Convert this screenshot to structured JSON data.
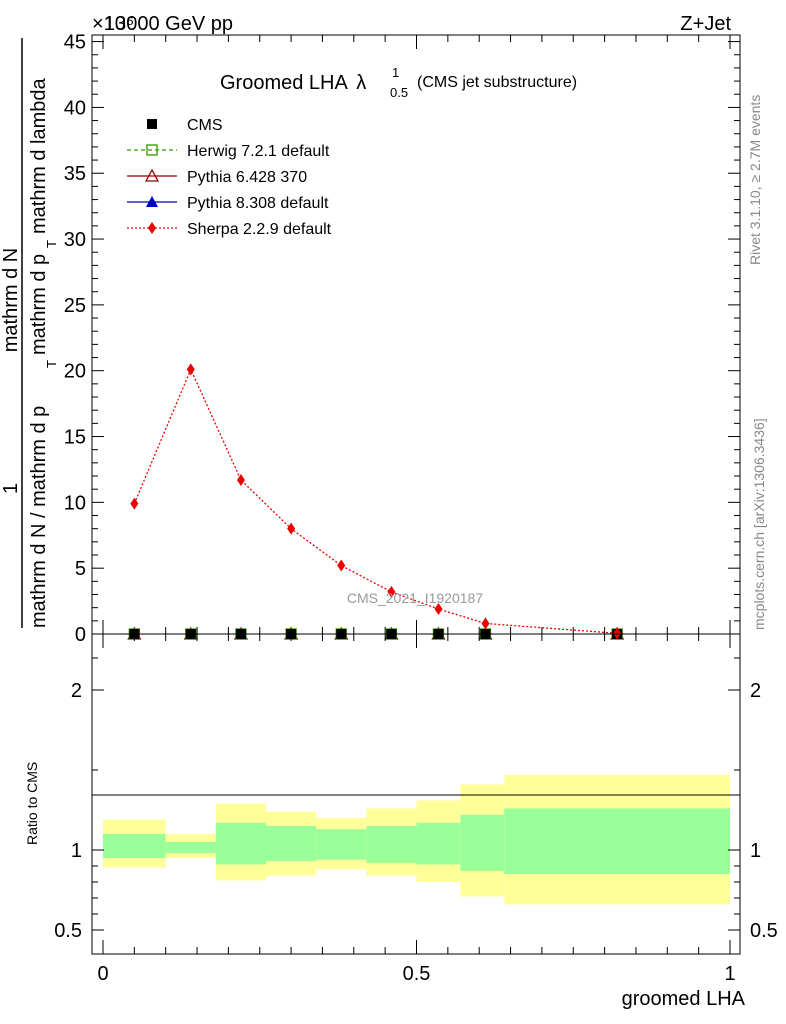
{
  "header": {
    "energy_label": "13000 GeV pp",
    "exponent_label": "×10⁶",
    "process_label": "Z+Jet"
  },
  "side_labels": {
    "rivet": "Rivet 3.1.10, ≥ 2.7M events",
    "mcplots": "mcplots.cern.ch [arXiv:1306.3436]"
  },
  "watermark": "CMS_2021_I1920187",
  "chart_data": [
    {
      "type": "line",
      "title_main": "Groomed LHA",
      "title_lambda": "λ",
      "title_sup": "1",
      "title_sub": "0.5",
      "title_note": "(CMS jet substructure)",
      "ylabel_numerator": "1",
      "ylabel_numerator_full": "mathrm d N",
      "ylabel_denominator": "mathrm d N / mathrm d p",
      "ylabel_denominator_mid": "mathrm d p",
      "ylabel_denominator_end": "mathrm d lambda",
      "ylabel_sub_t": "T",
      "ylabel_mid_text": "mathrm d p",
      "ylabel_sub_t2": "T",
      "ylabel_tail": "mathrm d lambda",
      "xlim": [
        0,
        1
      ],
      "ylim": [
        0,
        45.5
      ],
      "yticks": [
        0,
        5,
        10,
        15,
        20,
        25,
        30,
        35,
        40,
        45
      ],
      "ytick_labels": [
        "0",
        "5",
        "10",
        "15",
        "20",
        "25",
        "30",
        "35",
        "40",
        "45"
      ],
      "legend_position": "top-left",
      "legend": [
        {
          "name": "CMS",
          "color": "#000000",
          "marker": "filled-square",
          "line": "none"
        },
        {
          "name": "Herwig 7.2.1 default",
          "color": "#339900",
          "marker": "open-square",
          "line": "dashed"
        },
        {
          "name": "Pythia 6.428 370",
          "color": "#990000",
          "marker": "open-triangle",
          "line": "solid"
        },
        {
          "name": "Pythia 8.308 default",
          "color": "#0000cc",
          "marker": "filled-triangle",
          "line": "solid"
        },
        {
          "name": "Sherpa 2.2.9 default",
          "color": "#ee0000",
          "marker": "filled-diamond",
          "line": "dotted"
        }
      ],
      "bin_centers": [
        0.05,
        0.14,
        0.22,
        0.3,
        0.38,
        0.46,
        0.535,
        0.61,
        0.82
      ],
      "series": [
        {
          "name": "Sherpa 2.2.9 default",
          "values": [
            9.9,
            20.1,
            11.7,
            8.0,
            5.2,
            3.2,
            1.9,
            0.8,
            0.05
          ]
        },
        {
          "name": "CMS",
          "values": [
            0,
            0,
            0,
            0,
            0,
            0,
            0,
            0,
            0
          ]
        },
        {
          "name": "Herwig 7.2.1 default",
          "values": [
            0,
            0,
            0,
            0,
            0,
            0,
            0,
            0,
            0
          ]
        },
        {
          "name": "Pythia 6.428 370",
          "values": [
            0,
            0,
            0,
            0,
            0,
            0,
            0,
            0,
            0
          ]
        },
        {
          "name": "Pythia 8.308 default",
          "values": [
            0,
            0,
            0,
            0,
            0,
            0,
            0,
            0,
            0
          ]
        }
      ]
    },
    {
      "type": "area",
      "ylabel": "Ratio to CMS",
      "xlabel": "groomed LHA",
      "xlim": [
        0,
        1
      ],
      "ylim": [
        0.35,
        2.35
      ],
      "xticks": [
        0,
        0.5,
        1
      ],
      "xtick_labels": [
        "0",
        "0.5",
        "1"
      ],
      "yticks": [
        0.5,
        1,
        2
      ],
      "ytick_labels": [
        "0.5",
        "1",
        "2"
      ],
      "band_colors": {
        "inner": "#99ff99",
        "outer": "#ffff99"
      },
      "bins": [
        {
          "x0": 0.0,
          "x1": 0.1,
          "inner_lo": 0.95,
          "inner_hi": 1.1,
          "outer_lo": 0.89,
          "outer_hi": 1.19
        },
        {
          "x0": 0.1,
          "x1": 0.18,
          "inner_lo": 0.98,
          "inner_hi": 1.05,
          "outer_lo": 0.95,
          "outer_hi": 1.1
        },
        {
          "x0": 0.18,
          "x1": 0.26,
          "inner_lo": 0.91,
          "inner_hi": 1.17,
          "outer_lo": 0.81,
          "outer_hi": 1.29
        },
        {
          "x0": 0.26,
          "x1": 0.34,
          "inner_lo": 0.93,
          "inner_hi": 1.15,
          "outer_lo": 0.84,
          "outer_hi": 1.24
        },
        {
          "x0": 0.34,
          "x1": 0.42,
          "inner_lo": 0.94,
          "inner_hi": 1.13,
          "outer_lo": 0.88,
          "outer_hi": 1.2
        },
        {
          "x0": 0.42,
          "x1": 0.5,
          "inner_lo": 0.92,
          "inner_hi": 1.15,
          "outer_lo": 0.84,
          "outer_hi": 1.26
        },
        {
          "x0": 0.5,
          "x1": 0.57,
          "inner_lo": 0.91,
          "inner_hi": 1.17,
          "outer_lo": 0.8,
          "outer_hi": 1.31
        },
        {
          "x0": 0.57,
          "x1": 0.64,
          "inner_lo": 0.87,
          "inner_hi": 1.22,
          "outer_lo": 0.71,
          "outer_hi": 1.41
        },
        {
          "x0": 0.64,
          "x1": 1.0,
          "inner_lo": 0.85,
          "inner_hi": 1.26,
          "outer_lo": 0.66,
          "outer_hi": 1.47
        }
      ]
    }
  ]
}
